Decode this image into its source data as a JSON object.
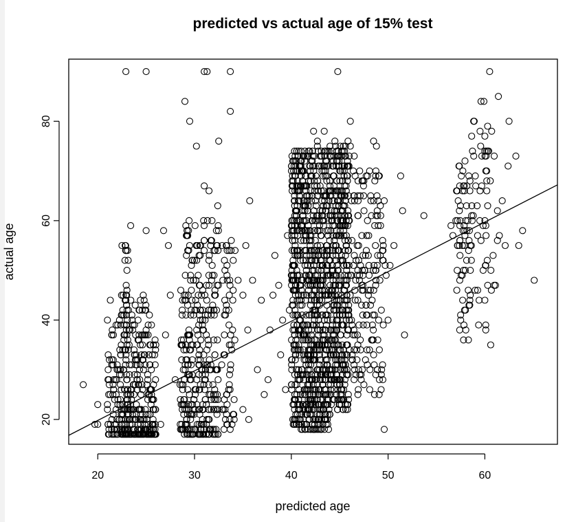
{
  "chart_data": {
    "type": "scatter",
    "title": "predicted vs actual age of 15% test",
    "xlabel": "predicted age",
    "ylabel": "actual age",
    "xlim": [
      17,
      67.5
    ],
    "ylim": [
      15,
      92.5
    ],
    "xticks": [
      20,
      30,
      40,
      50,
      60
    ],
    "yticks": [
      20,
      40,
      60,
      80
    ],
    "grid": false,
    "legend": "none",
    "fit_line": {
      "x": [
        17,
        67.5
      ],
      "y": [
        16.8,
        67.2
      ]
    },
    "clusters": [
      {
        "xmin": 21.0,
        "xmax": 26.0,
        "ymin": 17,
        "ymax": 45,
        "n": 360,
        "yskew": 2.2
      },
      {
        "xmin": 22.7,
        "xmax": 23.2,
        "ymin": 17,
        "ymax": 55,
        "n": 40,
        "yskew": 1.2
      },
      {
        "xmin": 28.5,
        "xmax": 32.5,
        "ymin": 17,
        "ymax": 60,
        "n": 330,
        "yskew": 1.5
      },
      {
        "xmin": 32.8,
        "xmax": 34.2,
        "ymin": 18,
        "ymax": 55,
        "n": 60,
        "yskew": 1.3
      },
      {
        "xmin": 40.0,
        "xmax": 44.0,
        "ymin": 18,
        "ymax": 75,
        "n": 900,
        "yskew": 1.15
      },
      {
        "xmin": 44.0,
        "xmax": 46.0,
        "ymin": 22,
        "ymax": 76,
        "n": 420,
        "yskew": 1.15
      },
      {
        "xmin": 46.0,
        "xmax": 49.5,
        "ymin": 25,
        "ymax": 70,
        "n": 160,
        "yskew": 1.1
      },
      {
        "xmin": 57.0,
        "xmax": 58.5,
        "ymin": 36,
        "ymax": 73,
        "n": 60,
        "yskew": 0.9
      },
      {
        "xmin": 58.5,
        "xmax": 61.0,
        "ymin": 36,
        "ymax": 80,
        "n": 40,
        "yskew": 0.9
      }
    ],
    "points": [
      [
        18.5,
        27
      ],
      [
        19.7,
        19
      ],
      [
        20.0,
        19
      ],
      [
        20.0,
        23
      ],
      [
        21.0,
        40
      ],
      [
        21.3,
        44
      ],
      [
        22.0,
        30
      ],
      [
        22.5,
        55
      ],
      [
        23.4,
        59
      ],
      [
        22.9,
        90
      ],
      [
        25.0,
        90
      ],
      [
        24.7,
        45
      ],
      [
        25.0,
        58
      ],
      [
        26.8,
        58
      ],
      [
        27.3,
        55
      ],
      [
        25.0,
        38
      ],
      [
        25.5,
        26
      ],
      [
        26.0,
        35
      ],
      [
        26.5,
        19
      ],
      [
        27.0,
        37
      ],
      [
        27.5,
        45
      ],
      [
        28.0,
        28
      ],
      [
        28.5,
        27
      ],
      [
        29.0,
        22
      ],
      [
        29.0,
        84
      ],
      [
        29.5,
        80
      ],
      [
        30.2,
        75
      ],
      [
        31.0,
        90
      ],
      [
        31.3,
        90
      ],
      [
        31.0,
        67
      ],
      [
        31.5,
        66
      ],
      [
        32.5,
        76
      ],
      [
        32.4,
        63
      ],
      [
        33.7,
        82
      ],
      [
        33.7,
        90
      ],
      [
        33.8,
        56
      ],
      [
        34.0,
        52
      ],
      [
        34.5,
        48
      ],
      [
        35.0,
        45
      ],
      [
        35.3,
        55
      ],
      [
        35.7,
        64
      ],
      [
        35.5,
        38
      ],
      [
        35.0,
        22
      ],
      [
        35.6,
        20
      ],
      [
        36.0,
        48
      ],
      [
        36.5,
        30
      ],
      [
        36.9,
        44
      ],
      [
        37.2,
        25
      ],
      [
        37.6,
        28
      ],
      [
        37.8,
        38
      ],
      [
        38.1,
        45
      ],
      [
        38.3,
        53
      ],
      [
        38.7,
        47
      ],
      [
        38.9,
        33
      ],
      [
        39.1,
        40
      ],
      [
        39.4,
        26
      ],
      [
        39.6,
        57
      ],
      [
        39.8,
        42
      ],
      [
        40.2,
        68
      ],
      [
        40.7,
        66
      ],
      [
        41.5,
        58
      ],
      [
        42.3,
        78
      ],
      [
        42.7,
        76
      ],
      [
        43.4,
        78
      ],
      [
        44.0,
        75
      ],
      [
        44.5,
        76
      ],
      [
        44.8,
        90
      ],
      [
        45.3,
        68
      ],
      [
        46.1,
        75
      ],
      [
        46.1,
        80
      ],
      [
        46.5,
        73
      ],
      [
        46.6,
        69
      ],
      [
        47.5,
        68
      ],
      [
        48.2,
        65
      ],
      [
        48.5,
        76
      ],
      [
        48.8,
        75
      ],
      [
        49.1,
        69
      ],
      [
        49.2,
        63
      ],
      [
        49.6,
        64
      ],
      [
        49.5,
        55
      ],
      [
        49.7,
        51
      ],
      [
        49.8,
        49
      ],
      [
        50.0,
        40
      ],
      [
        49.5,
        39
      ],
      [
        49.6,
        18
      ],
      [
        48.6,
        25
      ],
      [
        48.9,
        30
      ],
      [
        50.6,
        55
      ],
      [
        50.2,
        51
      ],
      [
        51.3,
        69
      ],
      [
        51.7,
        37
      ],
      [
        51.5,
        62
      ],
      [
        53.7,
        61
      ],
      [
        56.5,
        59
      ],
      [
        56.7,
        57
      ],
      [
        57.0,
        60
      ],
      [
        57.1,
        46
      ],
      [
        57.4,
        38
      ],
      [
        57.8,
        36
      ],
      [
        58.3,
        36
      ],
      [
        58.5,
        50
      ],
      [
        58.9,
        80
      ],
      [
        59.2,
        63
      ],
      [
        59.5,
        78
      ],
      [
        59.6,
        84
      ],
      [
        59.9,
        84
      ],
      [
        60.0,
        77
      ],
      [
        60.0,
        74
      ],
      [
        60.1,
        70
      ],
      [
        60.2,
        68
      ],
      [
        60.3,
        74
      ],
      [
        60.4,
        74
      ],
      [
        60.5,
        90
      ],
      [
        60.7,
        78
      ],
      [
        60.0,
        60
      ],
      [
        60.1,
        59
      ],
      [
        61.3,
        62
      ],
      [
        61.4,
        85
      ],
      [
        61.5,
        57
      ],
      [
        61.8,
        64
      ],
      [
        62.1,
        55
      ],
      [
        62.4,
        71
      ],
      [
        62.5,
        80
      ],
      [
        63.2,
        73
      ],
      [
        63.5,
        55
      ],
      [
        63.9,
        58
      ],
      [
        61.1,
        47
      ],
      [
        60.6,
        35
      ],
      [
        65.1,
        48
      ],
      [
        59.4,
        44
      ],
      [
        60.0,
        44
      ],
      [
        59.0,
        46
      ],
      [
        58.0,
        42
      ],
      [
        57.5,
        40
      ],
      [
        59.5,
        66
      ],
      [
        60.2,
        66
      ],
      [
        61.3,
        56
      ],
      [
        59.6,
        56
      ]
    ]
  }
}
